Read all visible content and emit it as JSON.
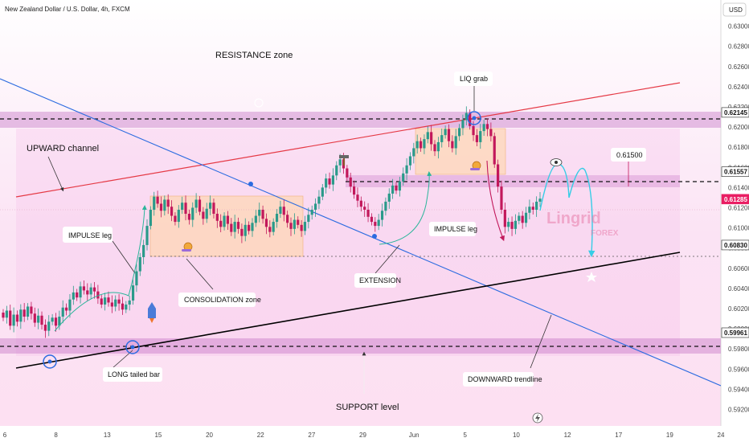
{
  "header": {
    "symbol_title": "New Zealand Dollar / U.S. Dollar, 4h, FXCM",
    "currency": "USD"
  },
  "colors": {
    "bull_candle": "#2a9a8a",
    "bear_candle": "#c2185b",
    "channel_line": "#e53945",
    "downtrend_line": "#2b6be0",
    "support_line": "#000000",
    "zone_fill": "#c87bc8",
    "accent_cyan": "#35cde6"
  },
  "annotations": {
    "resistance_zone": "RESISTANCE zone",
    "upward_channel": "UPWARD channel",
    "impulse_leg_1": "IMPULSE leg",
    "consolidation_zone": "CONSOLIDATION zone",
    "long_tailed_bar": "LONG tailed bar",
    "support_level": "SUPPORT level",
    "extension": "EXTENSION",
    "impulse_leg_2": "IMPULSE leg",
    "liq_grab": "LIQ grab",
    "downward_trendline": "DOWNWARD trendline",
    "target_price": "0.61500",
    "watermark": "Lingrid",
    "watermark_sub": "FOREX"
  },
  "price_tags": [
    {
      "value": "0.62145",
      "price": 0.62145
    },
    {
      "value": "0.61557",
      "price": 0.61557
    },
    {
      "value": "0.61285",
      "price": 0.61285
    },
    {
      "value": "0.60830",
      "price": 0.6083
    },
    {
      "value": "0.59961",
      "price": 0.59961
    }
  ],
  "chart_data": {
    "type": "candlestick",
    "title": "New Zealand Dollar / U.S. Dollar, 4h, FXCM",
    "y_axis": {
      "unit": "USD",
      "range": [
        0.5918,
        0.6318
      ],
      "ticks": [
        "0.63000",
        "0.62800",
        "0.62600",
        "0.62400",
        "0.62200",
        "0.62000",
        "0.61800",
        "0.61600",
        "0.61400",
        "0.61200",
        "0.61000",
        "0.60800",
        "0.60600",
        "0.60400",
        "0.60200",
        "0.60000",
        "0.59800",
        "0.59600",
        "0.59400",
        "0.59200"
      ]
    },
    "x_axis": {
      "ticks": [
        "6",
        "8",
        "13",
        "15",
        "20",
        "22",
        "27",
        "29",
        "Jun",
        "5",
        "10",
        "12",
        "17",
        "19",
        "24"
      ]
    },
    "levels": {
      "resistance": 0.62145,
      "consolidation_top": 0.61557,
      "last_price": 0.61285,
      "support_mid": 0.6083,
      "support": 0.59961
    },
    "closes": [
      0.6011,
      0.6018,
      0.6003,
      0.6014,
      0.6007,
      0.6019,
      0.6012,
      0.6022,
      0.6015,
      0.6006,
      0.6013,
      0.6004,
      0.5998,
      0.6007,
      0.6011,
      0.6003,
      0.6012,
      0.6021,
      0.6018,
      0.6029,
      0.6036,
      0.6031,
      0.6042,
      0.6038,
      0.6034,
      0.6041,
      0.6037,
      0.603,
      0.6024,
      0.6031,
      0.6026,
      0.6022,
      0.6029,
      0.6025,
      0.6019,
      0.6024,
      0.6028,
      0.6043,
      0.6057,
      0.6071,
      0.6083,
      0.6102,
      0.6118,
      0.6131,
      0.6124,
      0.6117,
      0.6128,
      0.6121,
      0.6112,
      0.6106,
      0.6118,
      0.6125,
      0.6114,
      0.6108,
      0.612,
      0.6128,
      0.6116,
      0.6109,
      0.6119,
      0.6125,
      0.6114,
      0.6107,
      0.6101,
      0.6112,
      0.6104,
      0.6096,
      0.6106,
      0.6099,
      0.6092,
      0.6103,
      0.6097,
      0.6105,
      0.6112,
      0.6118,
      0.6109,
      0.6101,
      0.6096,
      0.6106,
      0.6114,
      0.6121,
      0.6113,
      0.6105,
      0.6099,
      0.6108,
      0.6103,
      0.6097,
      0.6106,
      0.6113,
      0.6118,
      0.6124,
      0.6131,
      0.614,
      0.6149,
      0.6143,
      0.6152,
      0.6162,
      0.6168,
      0.6159,
      0.615,
      0.6141,
      0.6133,
      0.6127,
      0.6121,
      0.6118,
      0.6111,
      0.6106,
      0.6102,
      0.6108,
      0.6117,
      0.6126,
      0.6134,
      0.6142,
      0.6137,
      0.6146,
      0.6154,
      0.6162,
      0.6171,
      0.6179,
      0.6186,
      0.6179,
      0.6188,
      0.6195,
      0.6183,
      0.6176,
      0.6185,
      0.6192,
      0.6198,
      0.6186,
      0.6179,
      0.6191,
      0.6199,
      0.6207,
      0.6214,
      0.6201,
      0.6192,
      0.6185,
      0.6196,
      0.6203,
      0.6198,
      0.6191,
      0.6163,
      0.6141,
      0.6118,
      0.6101,
      0.6106,
      0.6099,
      0.6107,
      0.6112,
      0.6105,
      0.6115,
      0.6121,
      0.6118,
      0.6126,
      0.6129
    ]
  }
}
